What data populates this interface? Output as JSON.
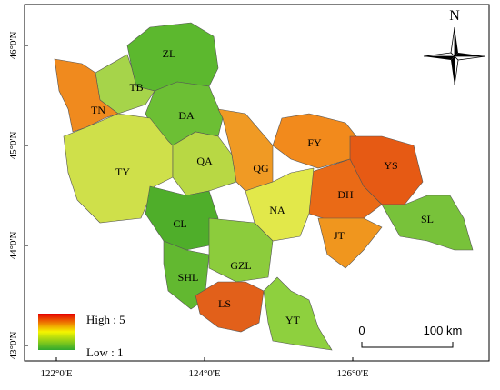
{
  "map": {
    "north": "N",
    "latitude_labels": [
      "46°0'N",
      "45°0'N",
      "44°0'N",
      "43°0'N"
    ],
    "longitude_labels": [
      "122°0'E",
      "124°0'E",
      "126°0'E"
    ],
    "regions": [
      "ZL",
      "TB",
      "TN",
      "DA",
      "TY",
      "QA",
      "QG",
      "FY",
      "YS",
      "DH",
      "NA",
      "SL",
      "JT",
      "CL",
      "SHL",
      "GZL",
      "LS",
      "YT"
    ],
    "legend": {
      "high": "High : 5",
      "low": "Low : 1"
    },
    "scale_bar": {
      "start": "0",
      "end": "100 km"
    }
  }
}
